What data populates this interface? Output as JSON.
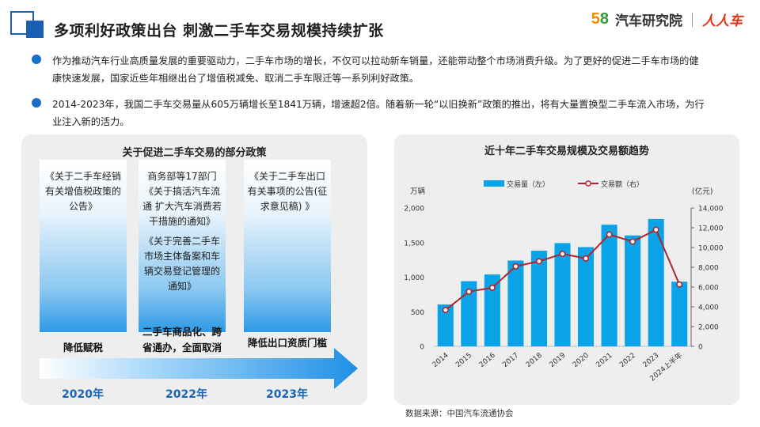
{
  "header": {
    "title": "多项利好政策出台 刺激二手车交易规模持续扩张",
    "brand_58": "58",
    "brand_name": "汽车研究院",
    "brand_logo": "人人车"
  },
  "bullets": [
    "作为推动汽车行业高质量发展的重要驱动力，二手车市场的增长，不仅可以拉动新车销量，还能带动整个市场消费升级。为了更好的促进二手车市场的健康快速发展，国家近些年相继出台了增值税减免、取消二手车限迁等一系列利好政策。",
    "2014-2023年，我国二手车交易量从605万辆增长至1841万辆，增速超2倍。随着新一轮“以旧换新”政策的推出，将有大量置换型二手车流入市场，为行业注入新的活力。"
  ],
  "policy_panel": {
    "title": "关于促进二手车交易的部分政策",
    "columns": [
      {
        "policies": [
          "《关于二手车经销有关增值税政策的公告》"
        ],
        "tag": "降低赋税",
        "year": "2020年"
      },
      {
        "policies": [
          "商务部等17部门《关于搞活汽车流通 扩大汽车消费若干措施的通知》",
          "《关于完善二手车市场主体备案和车辆交易登记管理的通知》"
        ],
        "tag": "二手车商品化、跨省通办，全面取消二手车限迁政策",
        "year": "2022年"
      },
      {
        "policies": [
          "《关于二手车出口有关事项的公告(征求意见稿) 》"
        ],
        "tag": "降低出口资质门槛",
        "year": "2023年"
      }
    ]
  },
  "chart_data": {
    "type": "bar",
    "title": "近十年二手车交易规模及交易额趋势",
    "categories": [
      "2014",
      "2015",
      "2016",
      "2017",
      "2018",
      "2019",
      "2020",
      "2021",
      "2022",
      "2023",
      "2024上半年"
    ],
    "series": [
      {
        "name": "交易量（左）",
        "type": "bar",
        "axis": "left",
        "color": "#0aa3e8",
        "values": [
          605,
          941,
          1039,
          1240,
          1382,
          1492,
          1434,
          1758,
          1603,
          1841,
          934
        ]
      },
      {
        "name": "交易额（右）",
        "type": "line",
        "axis": "right",
        "color": "#b0252a",
        "values": [
          3676,
          5536,
          5933,
          8092,
          8603,
          9357,
          8889,
          11317,
          10595,
          11797,
          6262
        ]
      }
    ],
    "y_left": {
      "unit": "万辆",
      "ylim": [
        0,
        2000
      ],
      "ticks": [
        "0",
        "500",
        "1,000",
        "1,500",
        "2,000"
      ]
    },
    "y_right": {
      "unit": "(亿元)",
      "ylim": [
        0,
        14000
      ],
      "ticks": [
        "0",
        "2,000",
        "4,000",
        "6,000",
        "8,000",
        "10,000",
        "12,000",
        "14,000"
      ]
    },
    "legend": "top-center",
    "grid": false
  },
  "source": "数据来源：中国汽车流通协会",
  "colors": {
    "accent": "#1a5fb4",
    "bar": "#0aa3e8",
    "line": "#b0252a",
    "year": "#1a64b8"
  }
}
